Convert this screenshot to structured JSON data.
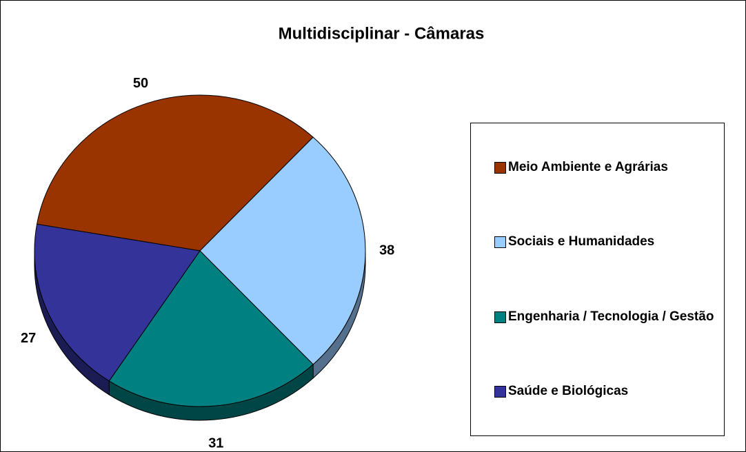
{
  "chart_data": {
    "type": "pie",
    "title": "Multidisciplinar - Câmaras",
    "categories": [
      "Meio Ambiente e Agrárias",
      "Sociais e Humanidades",
      "Engenharia / Tecnologia / Gestão",
      "Saúde e Biológicas"
    ],
    "values": [
      50,
      38,
      31,
      27
    ],
    "colors": [
      "#993300",
      "#99ccff",
      "#008080",
      "#333399"
    ],
    "legend": "right"
  }
}
